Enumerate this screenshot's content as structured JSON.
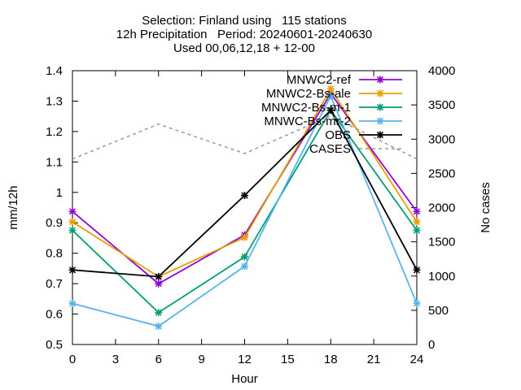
{
  "chart_data": {
    "type": "line",
    "title_lines": [
      "Selection: Finland using   115 stations",
      "12h Precipitation   Period: 20240601-20240630",
      "Used 00,06,12,18 + 12-00"
    ],
    "xlabel": "Hour",
    "ylabel": "mm/12h",
    "y2label": "No cases",
    "x": [
      0,
      6,
      12,
      18,
      24
    ],
    "xticks": [
      "0",
      "3",
      "6",
      "9",
      "12",
      "15",
      "18",
      "21",
      "24"
    ],
    "xlim": [
      0,
      24
    ],
    "ylim": [
      0.5,
      1.4
    ],
    "yticks": [
      "0.5",
      "0.6",
      "0.7",
      "0.8",
      "0.9",
      "1",
      "1.1",
      "1.2",
      "1.3",
      "1.4"
    ],
    "y2lim": [
      0,
      4000
    ],
    "y2ticks": [
      "0",
      "500",
      "1000",
      "1500",
      "2000",
      "2500",
      "3000",
      "3500",
      "4000"
    ],
    "grid": false,
    "legend_position": "top-right",
    "series": [
      {
        "name": "MNWC2-ref",
        "color": "#9400d3",
        "axis": "left",
        "dashed": false,
        "marker": true,
        "values": [
          0.937,
          0.7,
          0.86,
          1.325,
          0.937
        ]
      },
      {
        "name": "MNWC2-Bs-ale",
        "color": "#e69f00",
        "axis": "left",
        "dashed": false,
        "marker": true,
        "values": [
          0.903,
          0.723,
          0.852,
          1.34,
          0.903
        ]
      },
      {
        "name": "MNWC2-Bs-m-1",
        "color": "#009e73",
        "axis": "left",
        "dashed": false,
        "marker": true,
        "values": [
          0.875,
          0.605,
          0.788,
          1.27,
          0.875
        ]
      },
      {
        "name": "MNWC-Bs-mr-2",
        "color": "#56b4e9",
        "axis": "left",
        "dashed": false,
        "marker": true,
        "values": [
          0.635,
          0.56,
          0.757,
          1.317,
          0.635
        ]
      },
      {
        "name": "OBS",
        "color": "#000000",
        "axis": "left",
        "dashed": false,
        "marker": true,
        "values": [
          0.745,
          0.723,
          0.99,
          1.27,
          0.745
        ]
      },
      {
        "name": "CASES",
        "color": "#999999",
        "axis": "right",
        "dashed": true,
        "marker": false,
        "values": [
          2710,
          3220,
          2790,
          3340,
          2710
        ]
      }
    ]
  }
}
